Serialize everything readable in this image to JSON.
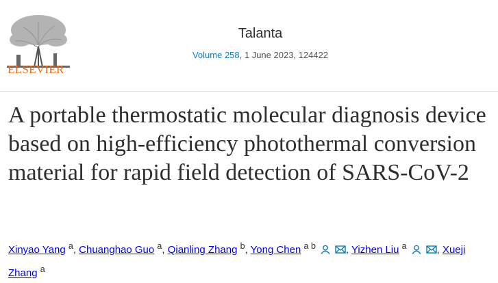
{
  "header": {
    "publisher": "ELSEVIER",
    "journal": "Talanta",
    "volume": "Volume 258",
    "issue_info": ", 1 June 2023, 124422"
  },
  "article": {
    "title": "A portable thermostatic molecular diagnosis device based on high-efficiency photothermal conversion material for rapid field detection of SARS-CoV-2"
  },
  "authors": {
    "separator": ",",
    "items": [
      {
        "name": "Xinyao Yang",
        "affiliation": "a",
        "contact": false
      },
      {
        "name": "Chuanghao Guo",
        "affiliation": "a",
        "contact": false
      },
      {
        "name": "Qianling Zhang",
        "affiliation": "b",
        "contact": false
      },
      {
        "name": "Yong Chen",
        "affiliation": "a b",
        "contact": true
      },
      {
        "name": "Yizhen Liu",
        "affiliation": "a",
        "contact": true
      },
      {
        "name": "Xueji Zhang",
        "affiliation": "a",
        "contact": false
      }
    ]
  }
}
